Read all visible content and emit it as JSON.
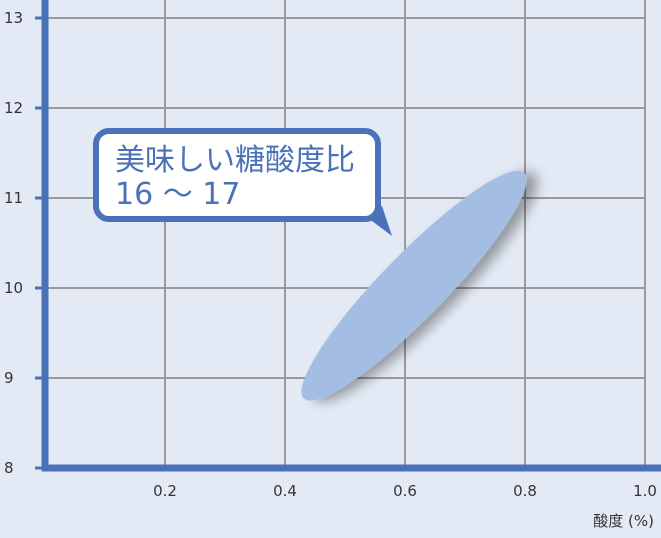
{
  "chart_data": {
    "type": "scatter",
    "xlabel": "酸度 (%)",
    "ylabel": "",
    "xlim": [
      0,
      1.0
    ],
    "ylim": [
      8,
      13
    ],
    "x_ticks": [
      "0.2",
      "0.4",
      "0.6",
      "0.8",
      "1.0"
    ],
    "y_ticks": [
      "8",
      "9",
      "10",
      "11",
      "12",
      "13"
    ],
    "grid": true,
    "region": {
      "shape": "ellipse",
      "x_range": [
        0.45,
        0.78
      ],
      "y_range": [
        8.9,
        11.15
      ]
    },
    "annotation": {
      "line1": "美味しい糖酸度比",
      "line2": "16 ～ 17"
    },
    "colors": {
      "axis": "#4a72b8",
      "grid": "#9a9a9a",
      "region": "#a4bde3",
      "background": "#e3eaf5",
      "callout_text": "#4a72b8"
    }
  }
}
